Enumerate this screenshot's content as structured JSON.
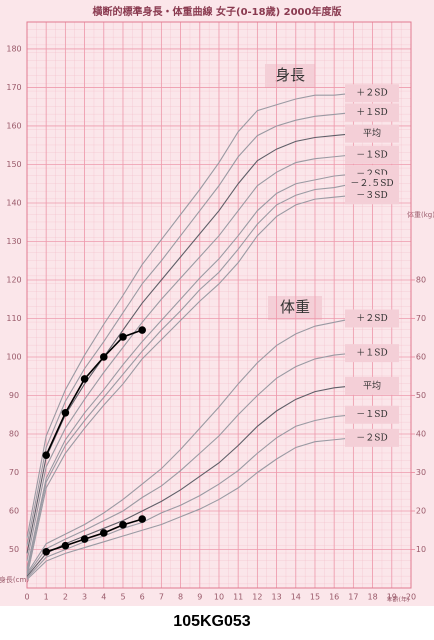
{
  "chart_data": {
    "type": "line",
    "title": "横断的標準身長・体重曲線 女子(0-18歳) 2000年度版",
    "caption": "105KG053",
    "height_label": "身長",
    "weight_label": "体重",
    "ylabel": "身長(cm)",
    "y2label": "体重(kg)",
    "xlabel": "年齢(年)",
    "xlim": [
      0,
      20
    ],
    "xticks": [
      0,
      1,
      2,
      3,
      4,
      5,
      6,
      7,
      8,
      9,
      10,
      11,
      12,
      13,
      14,
      15,
      16,
      17,
      18,
      19,
      20
    ],
    "ylim": [
      40,
      187
    ],
    "yticks": [
      50,
      60,
      70,
      80,
      90,
      100,
      110,
      120,
      130,
      140,
      150,
      160,
      170,
      180
    ],
    "y2lim": [
      0,
      147
    ],
    "y2ticks": [
      10,
      20,
      30,
      40,
      50,
      60,
      70,
      80
    ],
    "grid": true,
    "x": [
      0,
      1,
      2,
      3,
      4,
      5,
      6,
      7,
      8,
      9,
      10,
      11,
      12,
      13,
      14,
      15,
      16,
      17
    ],
    "series": [
      {
        "name": "＋２SD",
        "color": "#9a9aa3",
        "values": [
          53,
          79.5,
          91.5,
          100.5,
          108.5,
          116,
          124,
          130.5,
          137,
          143.5,
          150.5,
          158.5,
          164,
          165.5,
          167,
          168,
          168,
          168.5
        ]
      },
      {
        "name": "＋１SD",
        "color": "#9a9aa3",
        "values": [
          51,
          76.5,
          88.5,
          97,
          104,
          111.5,
          119,
          125,
          131.5,
          138,
          144.5,
          152,
          157.5,
          160,
          161.5,
          162.5,
          163,
          163.5
        ]
      },
      {
        "name": "平均",
        "color": "#5f5f68",
        "values": [
          49,
          74,
          85,
          93,
          100,
          107,
          114,
          120,
          126,
          132,
          138,
          145,
          151,
          154,
          156,
          157,
          157.5,
          158
        ]
      },
      {
        "name": "－１SD",
        "color": "#9a9aa3",
        "values": [
          47,
          71.5,
          81.5,
          89,
          96,
          102.5,
          109,
          115,
          120.5,
          126,
          131.5,
          138,
          144.5,
          148,
          150.5,
          151.5,
          152,
          152.5
        ]
      },
      {
        "name": "－２SD",
        "color": "#9a9aa3",
        "values": [
          45,
          68.5,
          78.5,
          85.5,
          91.5,
          98,
          104,
          109.5,
          115,
          120.5,
          125.5,
          131.5,
          138,
          142.5,
          145,
          146,
          147,
          147.5
        ]
      },
      {
        "name": "－２.５SD",
        "color": "#9a9aa3",
        "values": [
          44,
          67.5,
          77,
          83.5,
          89.5,
          95.5,
          101.5,
          107,
          112,
          117.5,
          122,
          128,
          134.5,
          139.5,
          142,
          143.5,
          144,
          145
        ]
      },
      {
        "name": "－３SD",
        "color": "#9a9aa3",
        "values": [
          43,
          66,
          75,
          81.5,
          87.5,
          93,
          99.5,
          104.5,
          109.5,
          114.5,
          119,
          124.5,
          131.5,
          136.5,
          139.5,
          141,
          141.5,
          142
        ]
      },
      {
        "name": "＋２SD",
        "axis": "y2",
        "color": "#9a9aa3",
        "values": [
          3.8,
          11.5,
          14,
          16.5,
          19.5,
          23,
          27,
          31,
          36,
          41.5,
          47,
          53,
          58.5,
          63,
          66,
          68,
          69,
          70
        ]
      },
      {
        "name": "＋１SD",
        "axis": "y2",
        "color": "#9a9aa3",
        "values": [
          3.4,
          10.2,
          12.7,
          15,
          17.5,
          20,
          23.5,
          26.5,
          30.5,
          35,
          39.5,
          45,
          50,
          54.5,
          57.5,
          59.5,
          60.5,
          61
        ]
      },
      {
        "name": "平均",
        "axis": "y2",
        "color": "#5f5f68",
        "values": [
          3,
          9,
          11.5,
          13.5,
          15.5,
          17.5,
          20,
          22.5,
          25.5,
          29,
          32.5,
          37,
          42,
          46,
          49,
          51,
          52,
          52.5
        ]
      },
      {
        "name": "－１SD",
        "axis": "y2",
        "color": "#9a9aa3",
        "values": [
          2.6,
          8,
          10,
          12,
          13.5,
          15.5,
          17,
          19.5,
          21.5,
          24,
          27,
          30.5,
          35,
          39,
          42,
          43.5,
          44.5,
          45
        ]
      },
      {
        "name": "－２SD",
        "axis": "y2",
        "color": "#9a9aa3",
        "values": [
          2.2,
          7,
          9,
          10.5,
          12,
          13.5,
          15,
          16.5,
          18.5,
          20.5,
          23,
          26,
          30,
          33.5,
          36.5,
          38,
          38.5,
          39
        ]
      },
      {
        "color": "#000000",
        "markers": true,
        "x": [
          1,
          2,
          3,
          4,
          5,
          6
        ],
        "values": [
          74.5,
          85.5,
          94.3,
          100,
          105.2,
          107
        ]
      },
      {
        "color": "#000000",
        "markers": true,
        "axis": "y2",
        "x": [
          1,
          2,
          3,
          4,
          5,
          6
        ],
        "values": [
          9.4,
          11,
          12.7,
          14.3,
          16.4,
          17.9
        ]
      }
    ]
  }
}
